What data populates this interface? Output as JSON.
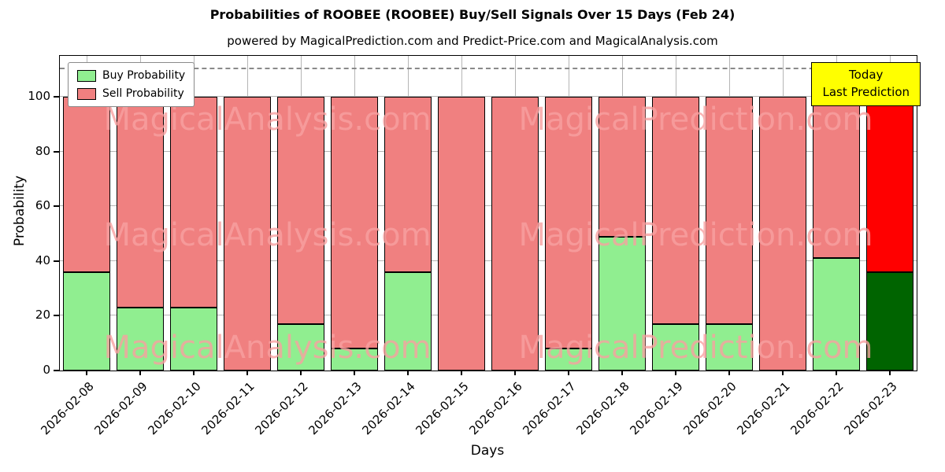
{
  "title": "Probabilities of ROOBEE (ROOBEE) Buy/Sell Signals Over 15 Days (Feb 24)",
  "subtitle": "powered by MagicalPrediction.com and Predict-Price.com and MagicalAnalysis.com",
  "legend": {
    "buy": "Buy Probability",
    "sell": "Sell Probability"
  },
  "today_box": {
    "line1": "Today",
    "line2": "Last Prediction",
    "bg": "#ffff00"
  },
  "watermark": {
    "left": "MagicalAnalysis.com",
    "right": "MagicalPrediction.com"
  },
  "axes": {
    "xlabel": "Days",
    "ylabel": "Probability",
    "yticks": [
      0,
      20,
      40,
      60,
      80,
      100
    ],
    "ylim": [
      0,
      115
    ],
    "dashed_line_y": 110,
    "grid": true
  },
  "colors": {
    "buy": "#90ee90",
    "sell": "#f08080",
    "today_buy": "#006400",
    "today_sell": "#ff0000",
    "grid": "#b5b5b5",
    "dashed": "#8a8a8a"
  },
  "chart_data": {
    "type": "bar",
    "stacked": true,
    "title": "Probabilities of ROOBEE (ROOBEE) Buy/Sell Signals Over 15 Days (Feb 24)",
    "xlabel": "Days",
    "ylabel": "Probability",
    "ylim": [
      0,
      115
    ],
    "legend_position": "upper left",
    "categories": [
      "2026-02-08",
      "2026-02-09",
      "2026-02-10",
      "2026-02-11",
      "2026-02-12",
      "2026-02-13",
      "2026-02-14",
      "2026-02-15",
      "2026-02-16",
      "2026-02-17",
      "2026-02-18",
      "2026-02-19",
      "2026-02-20",
      "2026-02-21",
      "2026-02-22",
      "2026-02-23"
    ],
    "series": [
      {
        "name": "Buy Probability",
        "values": [
          36,
          23,
          23,
          0,
          17,
          8,
          36,
          0,
          0,
          8,
          49,
          17,
          17,
          0,
          41,
          36
        ]
      },
      {
        "name": "Sell Probability",
        "values": [
          64,
          77,
          77,
          100,
          83,
          92,
          64,
          100,
          100,
          92,
          51,
          83,
          83,
          100,
          59,
          64
        ]
      }
    ],
    "today_index": 15,
    "annotation": "Today / Last Prediction on 2026-02-23"
  }
}
